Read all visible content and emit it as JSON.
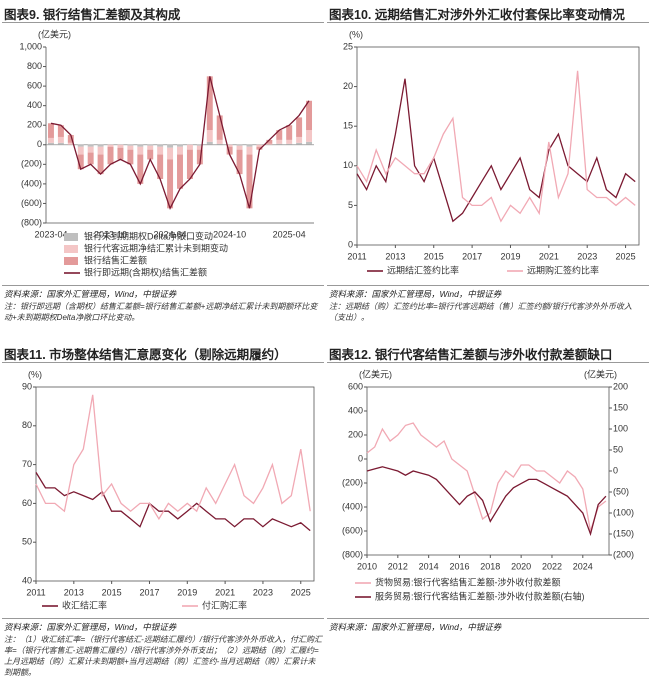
{
  "chart_data": [
    {
      "type": "bar",
      "stacked": true,
      "grid": false,
      "legend": "bottom",
      "title": "图表9. 银行结售汇差额及其构成",
      "y_label": "(亿美元)",
      "categories": [
        "2023-04",
        null,
        null,
        null,
        null,
        null,
        "2023-10",
        null,
        null,
        null,
        null,
        null,
        "2024-04",
        null,
        null,
        null,
        null,
        null,
        "2024-10",
        null,
        null,
        null,
        null,
        null,
        "2025-04",
        null,
        null
      ],
      "ylim": [
        -800,
        1000
      ],
      "yticks": [
        {
          "value": 1000,
          "label": "1,000"
        },
        800,
        600,
        400,
        200,
        0,
        {
          "value": -200,
          "label": "(200)"
        },
        {
          "value": -400,
          "label": "(400)"
        },
        {
          "value": -600,
          "label": "(600)"
        },
        {
          "value": -800,
          "label": "(800)"
        }
      ],
      "series": [
        {
          "name": "银行未到期期权Delta净敞口变动",
          "color": "#bfbfbf",
          "values": [
            20,
            20,
            0,
            -20,
            -20,
            -20,
            0,
            0,
            -10,
            -20,
            -10,
            -20,
            -30,
            -20,
            0,
            -10,
            30,
            10,
            0,
            -10,
            -20,
            0,
            0,
            10,
            10,
            20,
            30
          ]
        },
        {
          "name": "银行代客远期净结汇累计未到期变动",
          "color": "#f4c6c6",
          "values": [
            50,
            60,
            20,
            -80,
            -60,
            -80,
            -20,
            -30,
            -40,
            -80,
            -40,
            -80,
            -120,
            -80,
            -50,
            -40,
            120,
            40,
            -20,
            -40,
            -80,
            -20,
            10,
            40,
            40,
            60,
            120
          ]
        },
        {
          "name": "银行结售汇差额",
          "color": "#e39a9a",
          "values": [
            150,
            120,
            80,
            -150,
            -120,
            -200,
            -180,
            -120,
            -150,
            -300,
            -100,
            -250,
            -500,
            -350,
            -300,
            -150,
            550,
            250,
            -80,
            -250,
            -550,
            -30,
            40,
            100,
            150,
            200,
            300
          ]
        },
        {
          "name": "银行即远期(含期权)结售汇差额",
          "color": "#7b1a32",
          "type": "line",
          "values": [
            220,
            200,
            100,
            -250,
            -200,
            -300,
            -200,
            -150,
            -200,
            -400,
            -150,
            -350,
            -650,
            -450,
            -350,
            -200,
            700,
            300,
            -100,
            -300,
            -650,
            -50,
            50,
            150,
            200,
            300,
            450
          ]
        }
      ],
      "source": "资料来源：国家外汇管理局，Wind，中银证券",
      "note": "注：银行即远期（含期权）结售汇差额=银行结售汇差额+远期净结汇累计未到期额环比变动+未到期期权Delta净敞口环比变动。"
    },
    {
      "type": "line",
      "grid": false,
      "legend": "bottom",
      "title": "图表10. 远期结售汇对涉外外汇收付套保比率变动情况",
      "y_label": "(%)",
      "x": [
        2011,
        2011.5,
        2012,
        2012.5,
        2013,
        2013.5,
        2014,
        2014.5,
        2015,
        2015.5,
        2016,
        2016.5,
        2017,
        2017.5,
        2018,
        2018.5,
        2019,
        2019.5,
        2020,
        2020.5,
        2021,
        2021.5,
        2022,
        2022.5,
        2023,
        2023.5,
        2024,
        2024.5,
        2025,
        2025.5
      ],
      "xlim": [
        2011,
        2025.7
      ],
      "xticks": [
        2011,
        2013,
        2015,
        2017,
        2019,
        2021,
        2023,
        2025
      ],
      "ylim": [
        0,
        25
      ],
      "yticks": [
        0,
        5,
        10,
        15,
        20,
        25
      ],
      "series": [
        {
          "name": "远期结汇签约比率",
          "color": "#7b1a32",
          "values": [
            9,
            7,
            10,
            8,
            14,
            21,
            10,
            8,
            11,
            7,
            3,
            4,
            6,
            8,
            10,
            7,
            9,
            11,
            7,
            6,
            12,
            14,
            10,
            9,
            8,
            11,
            7,
            6,
            9,
            8
          ]
        },
        {
          "name": "远期购汇签约比率",
          "color": "#f1a9b4",
          "values": [
            10,
            8,
            12,
            9,
            11,
            10,
            9,
            9,
            11,
            14,
            16,
            6,
            5,
            5,
            6,
            3,
            5,
            4,
            6,
            4,
            13,
            6,
            9,
            22,
            7,
            6,
            6,
            5,
            6,
            5
          ]
        }
      ],
      "source": "资料来源：国家外汇管理局，Wind，中银证券",
      "note": "注：远期结（购）汇签约比率=银行代客远期结（售）汇签约额/银行代客涉外外币收入（支出）。"
    },
    {
      "type": "line",
      "grid": false,
      "legend": "bottom",
      "title": "图表11. 市场整体结售汇意愿变化（剔除远期履约）",
      "y_label": "(%)",
      "x": [
        2011,
        2011.5,
        2012,
        2012.5,
        2013,
        2013.5,
        2014,
        2014.5,
        2015,
        2015.5,
        2016,
        2016.5,
        2017,
        2017.5,
        2018,
        2018.5,
        2019,
        2019.5,
        2020,
        2020.5,
        2021,
        2021.5,
        2022,
        2022.5,
        2023,
        2023.5,
        2024,
        2024.5,
        2025,
        2025.5
      ],
      "xlim": [
        2011,
        2025.7
      ],
      "xticks": [
        2011,
        2013,
        2015,
        2017,
        2019,
        2021,
        2023,
        2025
      ],
      "ylim": [
        40,
        90
      ],
      "yticks": [
        40,
        50,
        60,
        70,
        80,
        90
      ],
      "series": [
        {
          "name": "收汇结汇率",
          "color": "#7b1a32",
          "values": [
            68,
            64,
            64,
            62,
            63,
            62,
            61,
            63,
            58,
            58,
            56,
            54,
            60,
            58,
            58,
            56,
            58,
            60,
            58,
            56,
            56,
            54,
            56,
            56,
            54,
            56,
            55,
            54,
            55,
            53
          ]
        },
        {
          "name": "付汇购汇率",
          "color": "#f1a9b4",
          "values": [
            65,
            60,
            60,
            58,
            70,
            74,
            88,
            62,
            65,
            60,
            58,
            60,
            60,
            56,
            60,
            58,
            60,
            58,
            64,
            60,
            65,
            70,
            62,
            60,
            64,
            70,
            60,
            62,
            74,
            58
          ]
        }
      ],
      "source": "资料来源：国家外汇管理局，Wind，中银证券",
      "note": "注：（1）收汇结汇率=（银行代客结汇-远期结汇履约）/银行代客涉外外币收入，付汇购汇率=（银行代客售汇-远期售汇履约）/银行代客涉外外币支出；（2）远期结（购）汇履约=上月远期结（购）汇累计未到期额+当月远期结（购）汇签约-当月远期结（购）汇累计未到期额。"
    },
    {
      "type": "line",
      "grid": false,
      "legend": "bottom",
      "title": "图表12. 银行代客结售汇差额与涉外收付款差额缺口",
      "y_label": "(亿美元)",
      "y2_label": "(亿美元)",
      "x": [
        2010,
        2010.5,
        2011,
        2011.5,
        2012,
        2012.5,
        2013,
        2013.5,
        2014,
        2014.5,
        2015,
        2015.5,
        2016,
        2016.5,
        2017,
        2017.5,
        2018,
        2018.5,
        2019,
        2019.5,
        2020,
        2020.5,
        2021,
        2021.5,
        2022,
        2022.5,
        2023,
        2023.5,
        2024,
        2024.5,
        2025,
        2025.5
      ],
      "xlim": [
        2010,
        2025.7
      ],
      "xticks": [
        2010,
        2012,
        2014,
        2016,
        2018,
        2020,
        2022,
        2024
      ],
      "ylim": [
        -800,
        600
      ],
      "yticks": [
        600,
        400,
        200,
        0,
        {
          "value": -200,
          "label": "(200)"
        },
        {
          "value": -400,
          "label": "(400)"
        },
        {
          "value": -600,
          "label": "(600)"
        },
        {
          "value": -800,
          "label": "(800)"
        }
      ],
      "y2lim": [
        -200,
        200
      ],
      "y2ticks": [
        200,
        150,
        100,
        50,
        0,
        {
          "value": -50,
          "label": "(50)"
        },
        {
          "value": -100,
          "label": "(100)"
        },
        {
          "value": -150,
          "label": "(150)"
        },
        {
          "value": -200,
          "label": "(200)"
        }
      ],
      "series": [
        {
          "name": "货物贸易:银行代客结售汇差额-涉外收付款差额",
          "color": "#f1a9b4",
          "values": [
            50,
            100,
            250,
            150,
            200,
            280,
            300,
            200,
            150,
            100,
            150,
            0,
            -50,
            -100,
            -300,
            -500,
            -450,
            -200,
            -100,
            -150,
            -50,
            -50,
            -100,
            -100,
            -150,
            -200,
            -100,
            -150,
            -250,
            -600,
            -400,
            -350
          ]
        },
        {
          "name": "服务贸易:银行代客结售汇差额-涉外收付款差额(右轴)",
          "color": "#7b1a32",
          "axis": "y2",
          "values": [
            0,
            5,
            10,
            5,
            0,
            -10,
            0,
            -5,
            -10,
            -20,
            -40,
            -60,
            -80,
            -60,
            -50,
            -70,
            -120,
            -90,
            -60,
            -40,
            -30,
            -20,
            -20,
            -30,
            -40,
            -50,
            -60,
            -80,
            -100,
            -150,
            -80,
            -60
          ]
        }
      ],
      "source": "资料来源：国家外汇管理局，Wind，中银证券"
    }
  ]
}
